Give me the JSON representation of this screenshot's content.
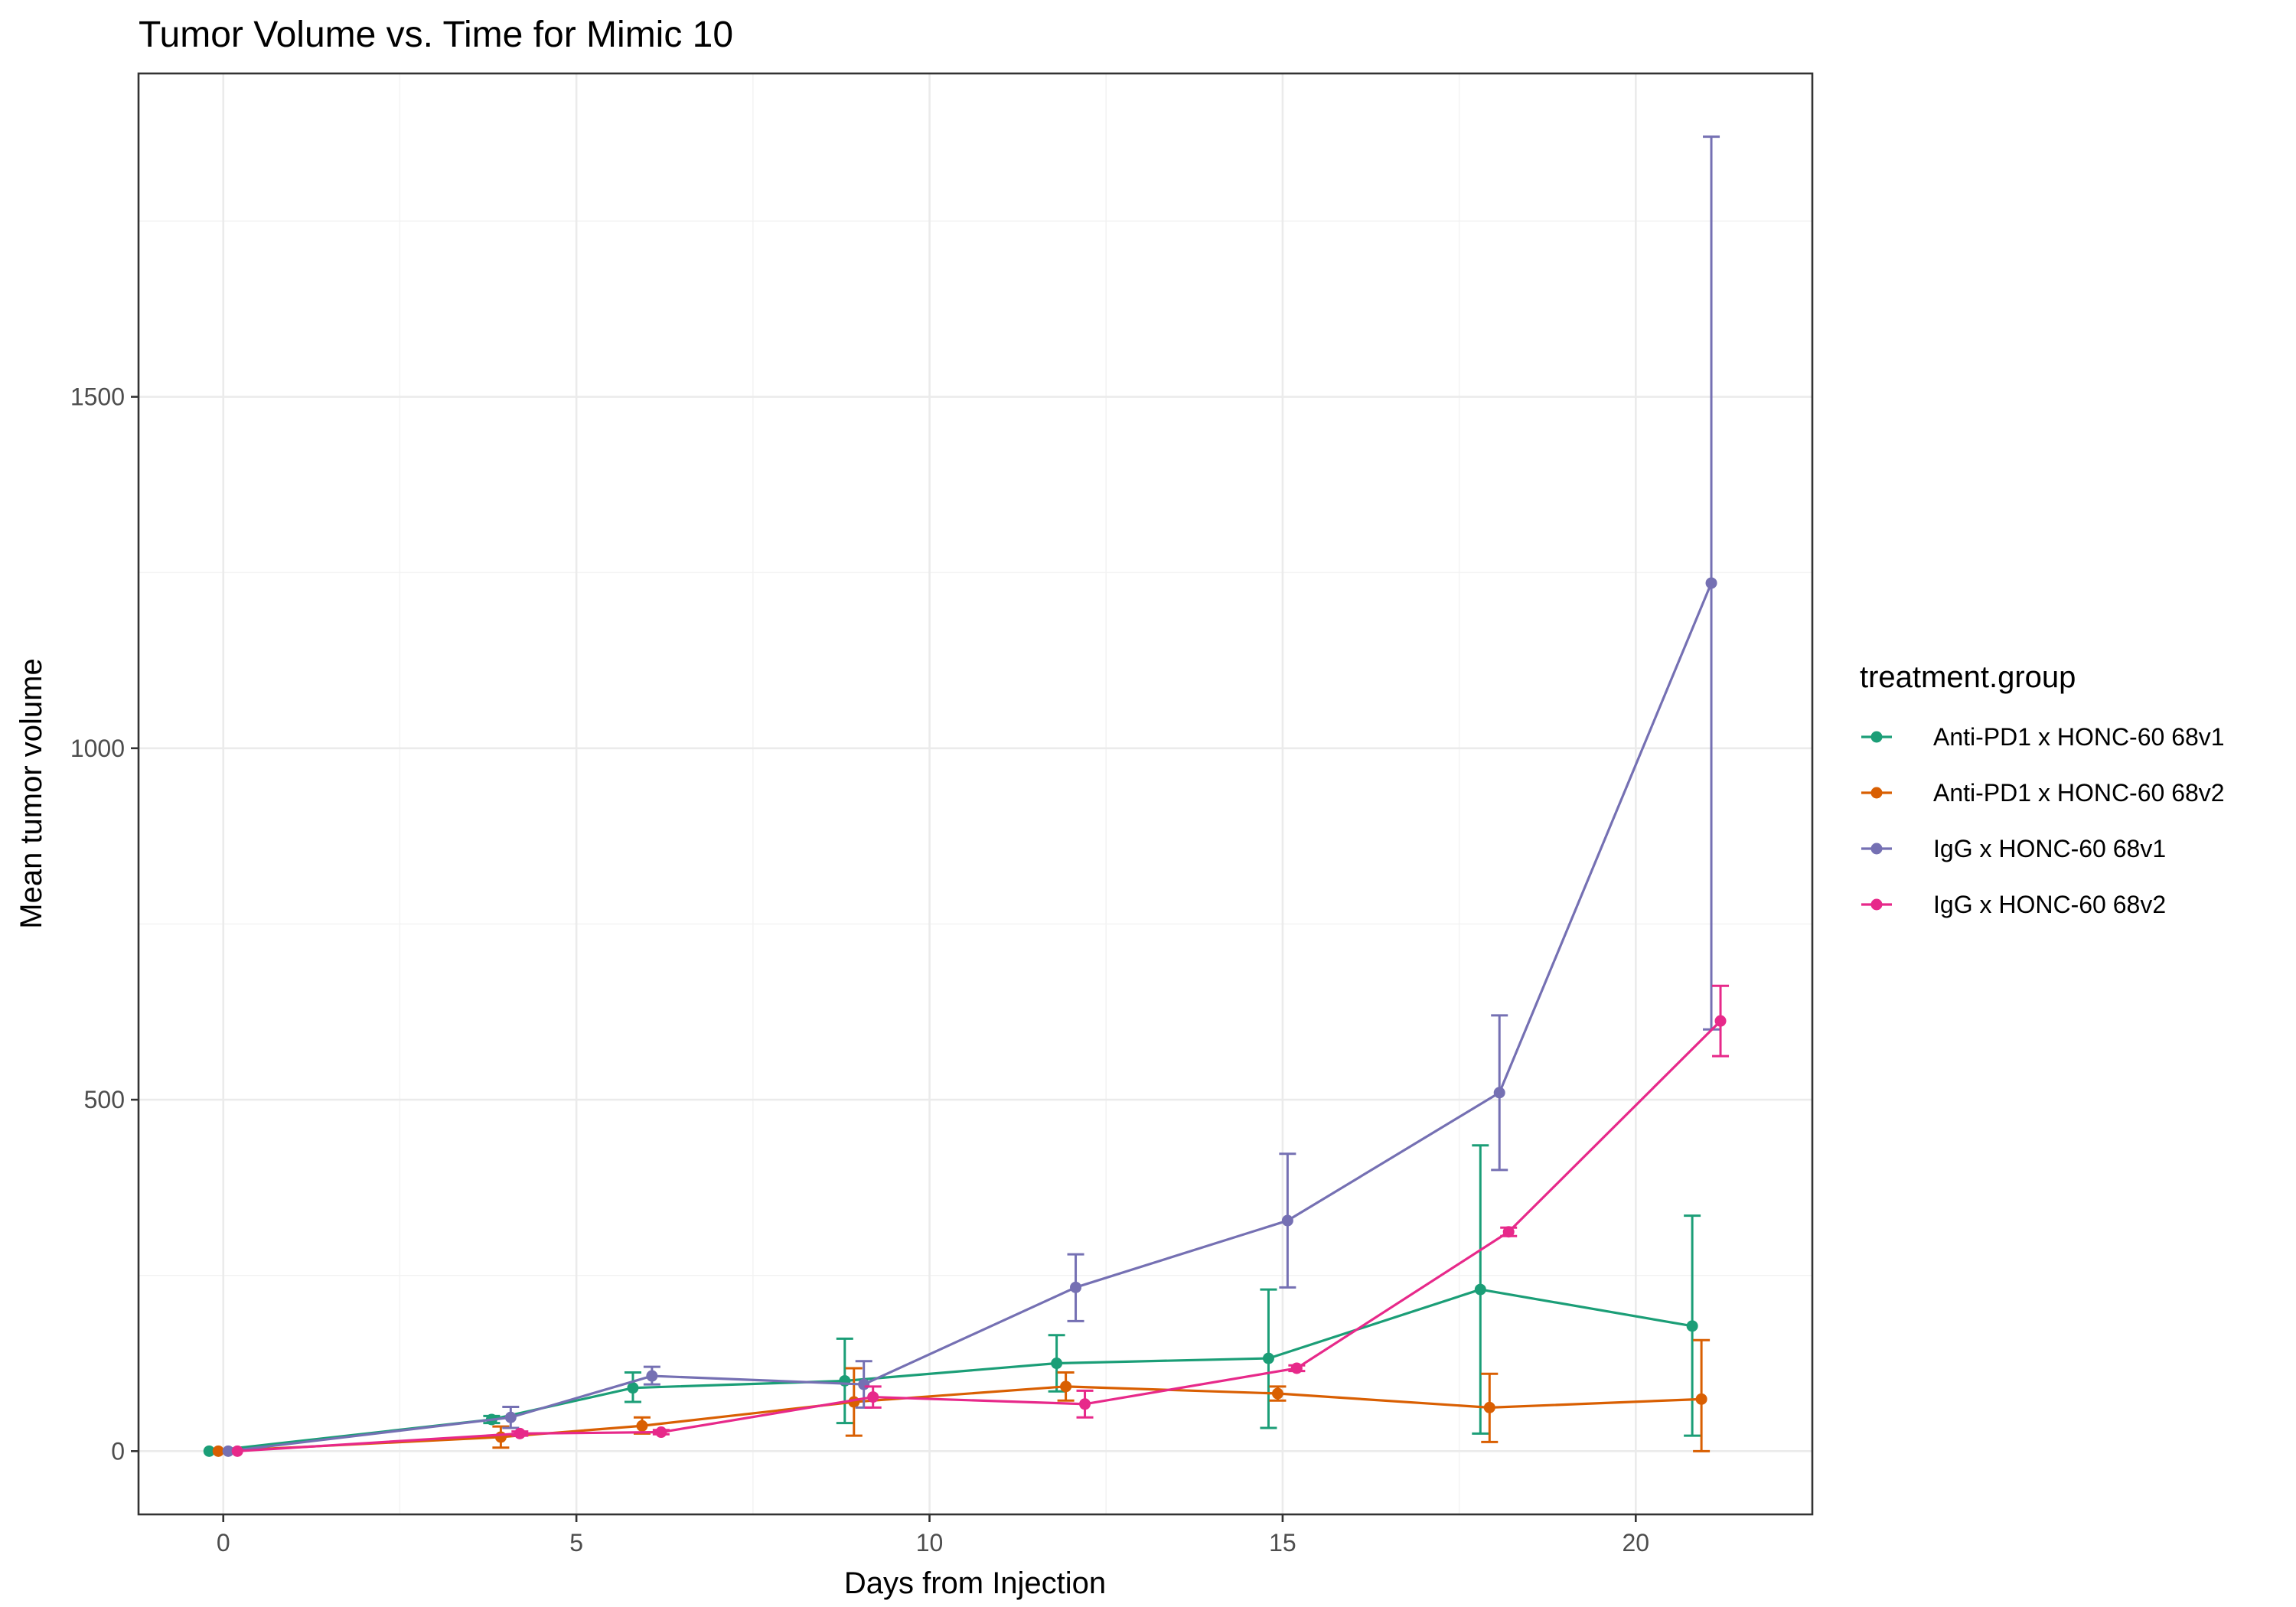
{
  "chart_data": {
    "type": "line",
    "title": "Tumor Volume vs. Time for Mimic 10",
    "xlabel": "Days from Injection",
    "ylabel": "Mean tumor volume",
    "xlim": [
      -1.2,
      22.5
    ],
    "ylim": [
      -90,
      1960
    ],
    "x_ticks": [
      0,
      5,
      10,
      15,
      20
    ],
    "x_tick_labels": [
      "0",
      "5",
      "10",
      "15",
      "20"
    ],
    "y_ticks": [
      0,
      500,
      1000,
      1500
    ],
    "y_tick_labels": [
      "0",
      "500",
      "1000",
      "1500"
    ],
    "grid": true,
    "error_bars": true,
    "legend": {
      "title": "treatment.group",
      "position": "right"
    },
    "series": [
      {
        "name": "Anti-PD1 x HONC-60 68v1",
        "color": "#1b9e77",
        "points": [
          {
            "x": -0.2,
            "y": 0,
            "lo": 0,
            "hi": 0
          },
          {
            "x": 3.8,
            "y": 45,
            "lo": 40,
            "hi": 50
          },
          {
            "x": 5.8,
            "y": 90,
            "lo": 70,
            "hi": 112
          },
          {
            "x": 8.8,
            "y": 100,
            "lo": 40,
            "hi": 160
          },
          {
            "x": 11.8,
            "y": 125,
            "lo": 85,
            "hi": 165
          },
          {
            "x": 14.8,
            "y": 132,
            "lo": 33,
            "hi": 230
          },
          {
            "x": 17.8,
            "y": 230,
            "lo": 25,
            "hi": 435
          },
          {
            "x": 20.8,
            "y": 178,
            "lo": 22,
            "hi": 335
          }
        ]
      },
      {
        "name": "Anti-PD1 x HONC-60 68v2",
        "color": "#d95f02",
        "points": [
          {
            "x": -0.07,
            "y": 0,
            "lo": 0,
            "hi": 0
          },
          {
            "x": 3.93,
            "y": 20,
            "lo": 5,
            "hi": 35
          },
          {
            "x": 5.93,
            "y": 36,
            "lo": 25,
            "hi": 48
          },
          {
            "x": 8.93,
            "y": 70,
            "lo": 22,
            "hi": 118
          },
          {
            "x": 11.93,
            "y": 92,
            "lo": 72,
            "hi": 112
          },
          {
            "x": 14.93,
            "y": 82,
            "lo": 72,
            "hi": 92
          },
          {
            "x": 17.93,
            "y": 62,
            "lo": 13,
            "hi": 110
          },
          {
            "x": 20.93,
            "y": 74,
            "lo": 0,
            "hi": 158
          }
        ]
      },
      {
        "name": "IgG x HONC-60 68v1",
        "color": "#7570b3",
        "points": [
          {
            "x": 0.07,
            "y": 0,
            "lo": 0,
            "hi": 0
          },
          {
            "x": 4.07,
            "y": 48,
            "lo": 33,
            "hi": 63
          },
          {
            "x": 6.07,
            "y": 107,
            "lo": 95,
            "hi": 120
          },
          {
            "x": 9.07,
            "y": 95,
            "lo": 62,
            "hi": 128
          },
          {
            "x": 12.07,
            "y": 233,
            "lo": 185,
            "hi": 280
          },
          {
            "x": 15.07,
            "y": 328,
            "lo": 233,
            "hi": 423
          },
          {
            "x": 18.07,
            "y": 510,
            "lo": 400,
            "hi": 620
          },
          {
            "x": 21.07,
            "y": 1235,
            "lo": 600,
            "hi": 1870
          }
        ]
      },
      {
        "name": "IgG x HONC-60 68v2",
        "color": "#e7298a",
        "points": [
          {
            "x": 0.2,
            "y": 0,
            "lo": 0,
            "hi": 0
          },
          {
            "x": 4.2,
            "y": 25,
            "lo": 22,
            "hi": 28
          },
          {
            "x": 6.2,
            "y": 27,
            "lo": 24,
            "hi": 30
          },
          {
            "x": 9.2,
            "y": 77,
            "lo": 62,
            "hi": 92
          },
          {
            "x": 12.2,
            "y": 67,
            "lo": 48,
            "hi": 86
          },
          {
            "x": 15.2,
            "y": 118,
            "lo": 114,
            "hi": 122
          },
          {
            "x": 18.2,
            "y": 312,
            "lo": 306,
            "hi": 318
          },
          {
            "x": 21.2,
            "y": 612,
            "lo": 562,
            "hi": 662
          }
        ]
      }
    ]
  }
}
